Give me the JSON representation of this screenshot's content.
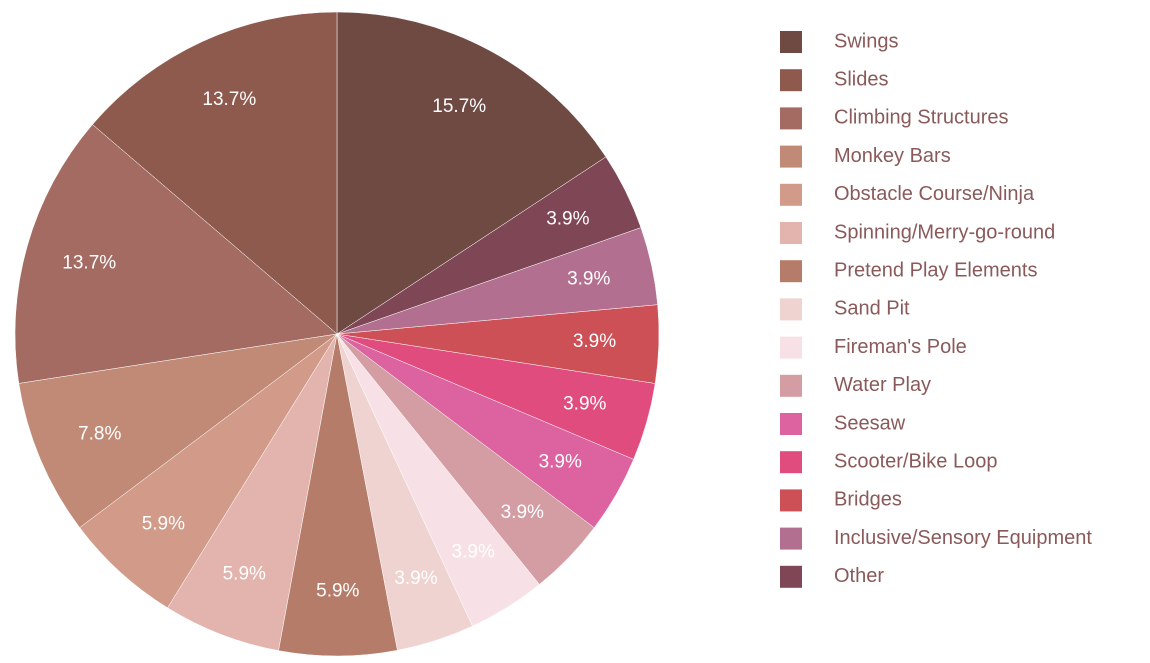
{
  "chart_data": {
    "type": "pie",
    "categories": [
      "Swings",
      "Slides",
      "Climbing Structures",
      "Monkey Bars",
      "Obstacle Course/Ninja",
      "Spinning/Merry-go-round",
      "Pretend Play Elements",
      "Sand Pit",
      "Fireman's Pole",
      "Water Play",
      "Seesaw",
      "Scooter/Bike Loop",
      "Bridges",
      "Inclusive/Sensory Equipment",
      "Other"
    ],
    "values": [
      15.7,
      13.7,
      13.7,
      7.8,
      5.9,
      5.9,
      5.9,
      3.9,
      3.9,
      3.9,
      3.9,
      3.9,
      3.9,
      3.9,
      3.9
    ],
    "value_labels": [
      "15.7%",
      "13.7%",
      "13.7%",
      "7.8%",
      "5.9%",
      "5.9%",
      "5.9%",
      "3.9%",
      "3.9%",
      "3.9%",
      "3.9%",
      "3.9%",
      "3.9%",
      "3.9%",
      "3.9%"
    ],
    "colors": [
      "#6e4a42",
      "#8e5a4e",
      "#a46b62",
      "#c08a77",
      "#d29a89",
      "#e3b4ad",
      "#b67c6a",
      "#efd3d0",
      "#f8e1e6",
      "#d49da4",
      "#dc62a0",
      "#e14c7e",
      "#cd5056",
      "#b36f8f",
      "#7f4656"
    ],
    "legend": "right"
  }
}
